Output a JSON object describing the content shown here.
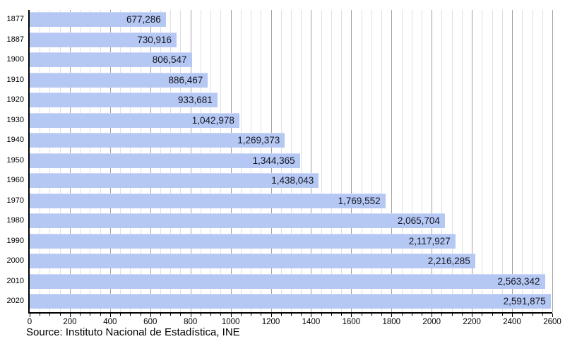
{
  "chart_data": {
    "type": "bar",
    "orientation": "horizontal",
    "title": "",
    "categories": [
      "1877",
      "1887",
      "1900",
      "1910",
      "1920",
      "1930",
      "1940",
      "1950",
      "1960",
      "1970",
      "1980",
      "1990",
      "2000",
      "2010",
      "2020"
    ],
    "values": [
      677286,
      730916,
      806547,
      886467,
      933681,
      1042978,
      1269373,
      1344365,
      1438043,
      1769552,
      2065704,
      2117927,
      2216285,
      2563342,
      2591875
    ],
    "value_labels": [
      "677,286",
      "730,916",
      "806,547",
      "886,467",
      "933,681",
      "1,042,978",
      "1,269,373",
      "1,344,365",
      "1,438,043",
      "1,769,552",
      "2,065,704",
      "2,117,927",
      "2,216,285",
      "2,563,342",
      "2,591,875"
    ],
    "xlabel": "",
    "ylabel": "",
    "x_axis": {
      "min": 0,
      "max": 2600,
      "unit_divisor": 1000,
      "minor_step": 50,
      "major_step": 200,
      "tick_labels": [
        "0",
        "200",
        "400",
        "600",
        "800",
        "1000",
        "1200",
        "1400",
        "1600",
        "1800",
        "2000",
        "2200",
        "2400",
        "2600"
      ]
    },
    "grid": {
      "minor": true,
      "major": true
    },
    "legend": null,
    "source": "Source: Instituto Nacional de Estadística, INE",
    "colors": {
      "bar_fill": "#b5c8f4",
      "bar_top_highlight": "#cdd8fa",
      "value_text": "#15161f",
      "grid_minor": "#e0e0e0",
      "grid_major": "#a0a0a0",
      "axis": "#000000",
      "background": "#ffffff"
    }
  }
}
